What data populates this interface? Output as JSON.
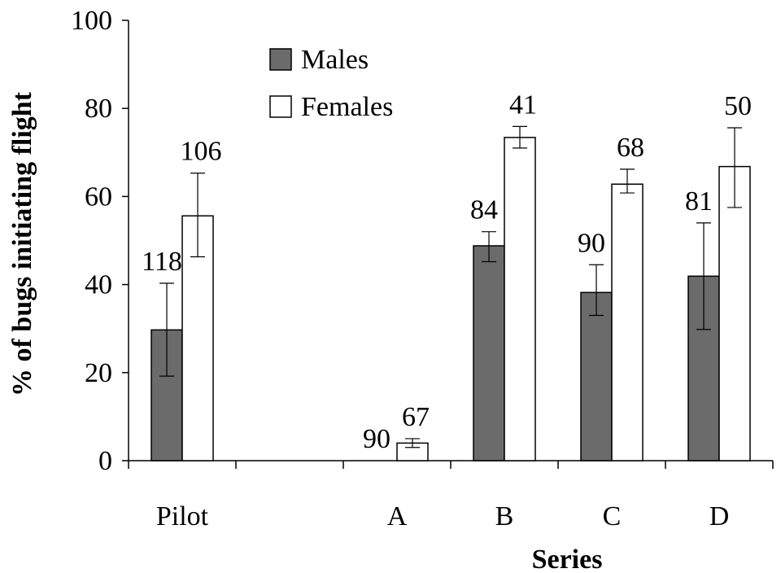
{
  "chart_data": {
    "type": "bar",
    "xlabel": "Series",
    "ylabel": "% of bugs initiating flight",
    "ylim": [
      0,
      100
    ],
    "yticks": [
      0,
      20,
      40,
      60,
      80,
      100
    ],
    "categories": [
      "Pilot",
      "",
      "A",
      "B",
      "C",
      "D"
    ],
    "series": [
      {
        "name": "Males",
        "color": "#6b6b6b",
        "values": [
          29.7,
          null,
          0,
          48.8,
          38.2,
          41.9
        ],
        "err_low": [
          19.2,
          null,
          null,
          45.2,
          33.0,
          29.8
        ],
        "err_high": [
          40.3,
          null,
          null,
          52.0,
          44.5,
          54.0
        ],
        "n": [
          "118",
          null,
          "90",
          "84",
          "90",
          "81"
        ]
      },
      {
        "name": "Females",
        "color": "#ffffff",
        "values": [
          55.6,
          null,
          4.0,
          73.4,
          62.8,
          66.8
        ],
        "err_low": [
          46.3,
          null,
          3.0,
          71.0,
          60.8,
          57.5
        ],
        "err_high": [
          65.3,
          null,
          5.0,
          75.9,
          66.2,
          75.6
        ],
        "n": [
          "106",
          null,
          "67",
          "41",
          "68",
          "50"
        ]
      }
    ],
    "grid": false,
    "legend_position": "top-center"
  }
}
